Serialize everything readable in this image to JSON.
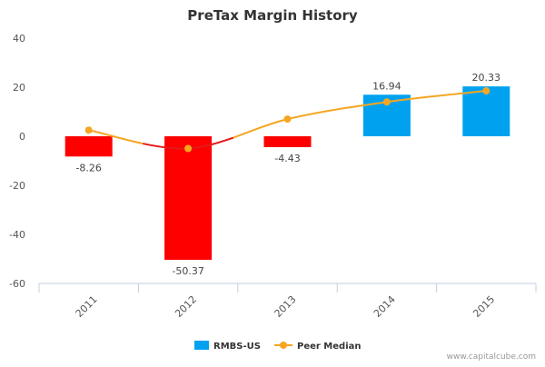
{
  "chart_data": {
    "type": "bar",
    "title": "PreTax Margin History",
    "categories": [
      "2011",
      "2012",
      "2013",
      "2014",
      "2015"
    ],
    "series": [
      {
        "name": "RMBS-US",
        "kind": "bar",
        "values": [
          -8.26,
          -50.37,
          -4.43,
          16.94,
          20.33
        ],
        "data_labels": [
          "-8.26",
          "-50.37",
          "-4.43",
          "16.94",
          "20.33"
        ],
        "positive_color": "#00a2f0",
        "negative_color": "#ff0000"
      },
      {
        "name": "Peer Median",
        "kind": "line",
        "values": [
          2.5,
          -5.0,
          7.0,
          14.0,
          18.5
        ],
        "color": "#f5a623",
        "below_zero_color": "#e41a1a"
      }
    ],
    "ylim": [
      -60,
      40
    ],
    "yticks": [
      40,
      20,
      0,
      -20,
      -40,
      -60
    ],
    "ytick_labels": [
      "40",
      "20",
      "0",
      "-20",
      "-40",
      "-60"
    ],
    "legend_position": "bottom-center",
    "grid": false
  },
  "legend": {
    "bar_label": "RMBS-US",
    "line_label": "Peer Median"
  },
  "credit": "www.capitalcube.com"
}
